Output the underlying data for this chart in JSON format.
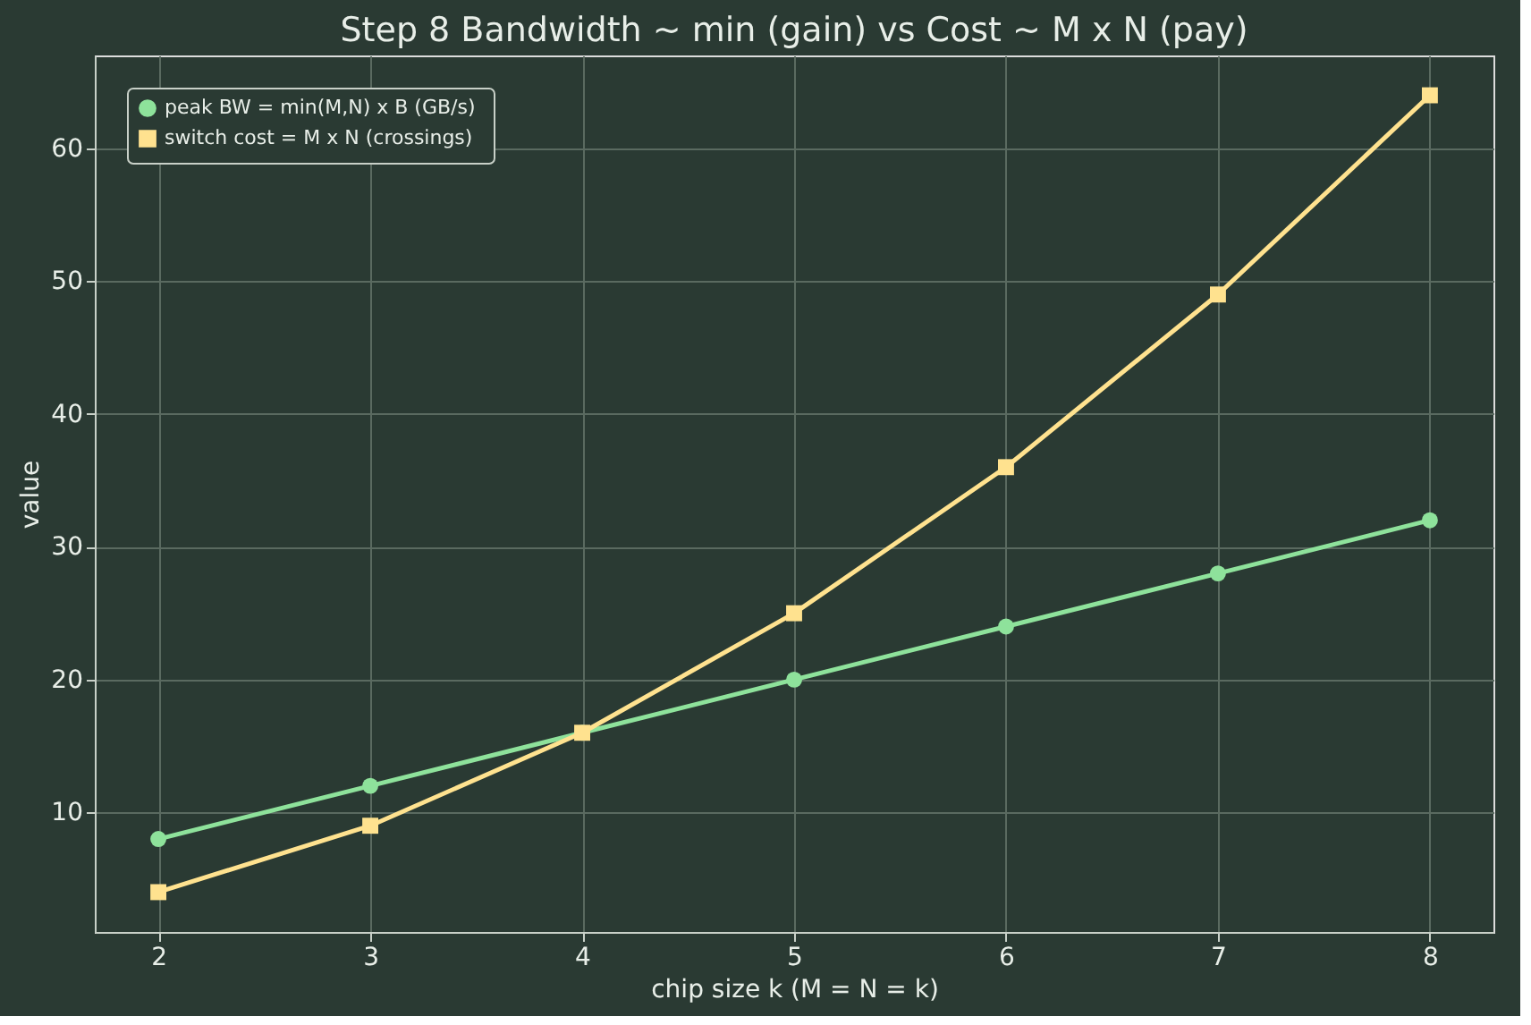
{
  "chart_data": {
    "type": "line",
    "title": "Step 8  Bandwidth ~ min (gain)   vs   Cost ~ M x N (pay)",
    "xlabel": "chip size k  (M = N = k)",
    "ylabel": "value",
    "x": [
      2,
      3,
      4,
      5,
      6,
      7,
      8
    ],
    "series": [
      {
        "name": "peak BW = min(M,N) x B  (GB/s)",
        "color": "#8ee29b",
        "marker": "circle",
        "values": [
          8,
          12,
          16,
          20,
          24,
          28,
          32
        ]
      },
      {
        "name": "switch cost = M x N  (crossings)",
        "color": "#ffe28f",
        "marker": "square",
        "values": [
          4,
          9,
          16,
          25,
          36,
          49,
          64
        ]
      }
    ],
    "xlim": [
      1.7,
      8.3
    ],
    "xticks": [
      2,
      3,
      4,
      5,
      6,
      7,
      8
    ],
    "ylim": [
      1,
      67
    ],
    "yticks": [
      10,
      20,
      30,
      40,
      50,
      60
    ],
    "grid": true,
    "legend": "top left",
    "line_style": "solid"
  }
}
